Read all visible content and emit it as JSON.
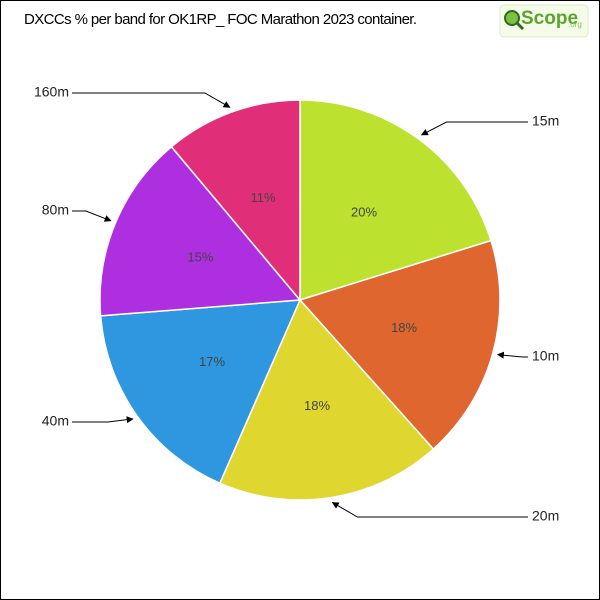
{
  "chart_data": {
    "type": "pie",
    "title": "DXCCs % per band for OK1RP_ FOC Marathon 2023 container.",
    "logo": {
      "text": "Scope",
      "suffix": ".org"
    },
    "categories": [
      "15m",
      "10m",
      "20m",
      "40m",
      "80m",
      "160m"
    ],
    "values": [
      20,
      18,
      18,
      17,
      15,
      11
    ],
    "value_labels": [
      "20%",
      "18%",
      "18%",
      "17%",
      "15%",
      "11%"
    ],
    "colors": [
      "#bce22f",
      "#e0662f",
      "#e0d630",
      "#2f97e0",
      "#ae2fe0",
      "#e02f78"
    ]
  }
}
